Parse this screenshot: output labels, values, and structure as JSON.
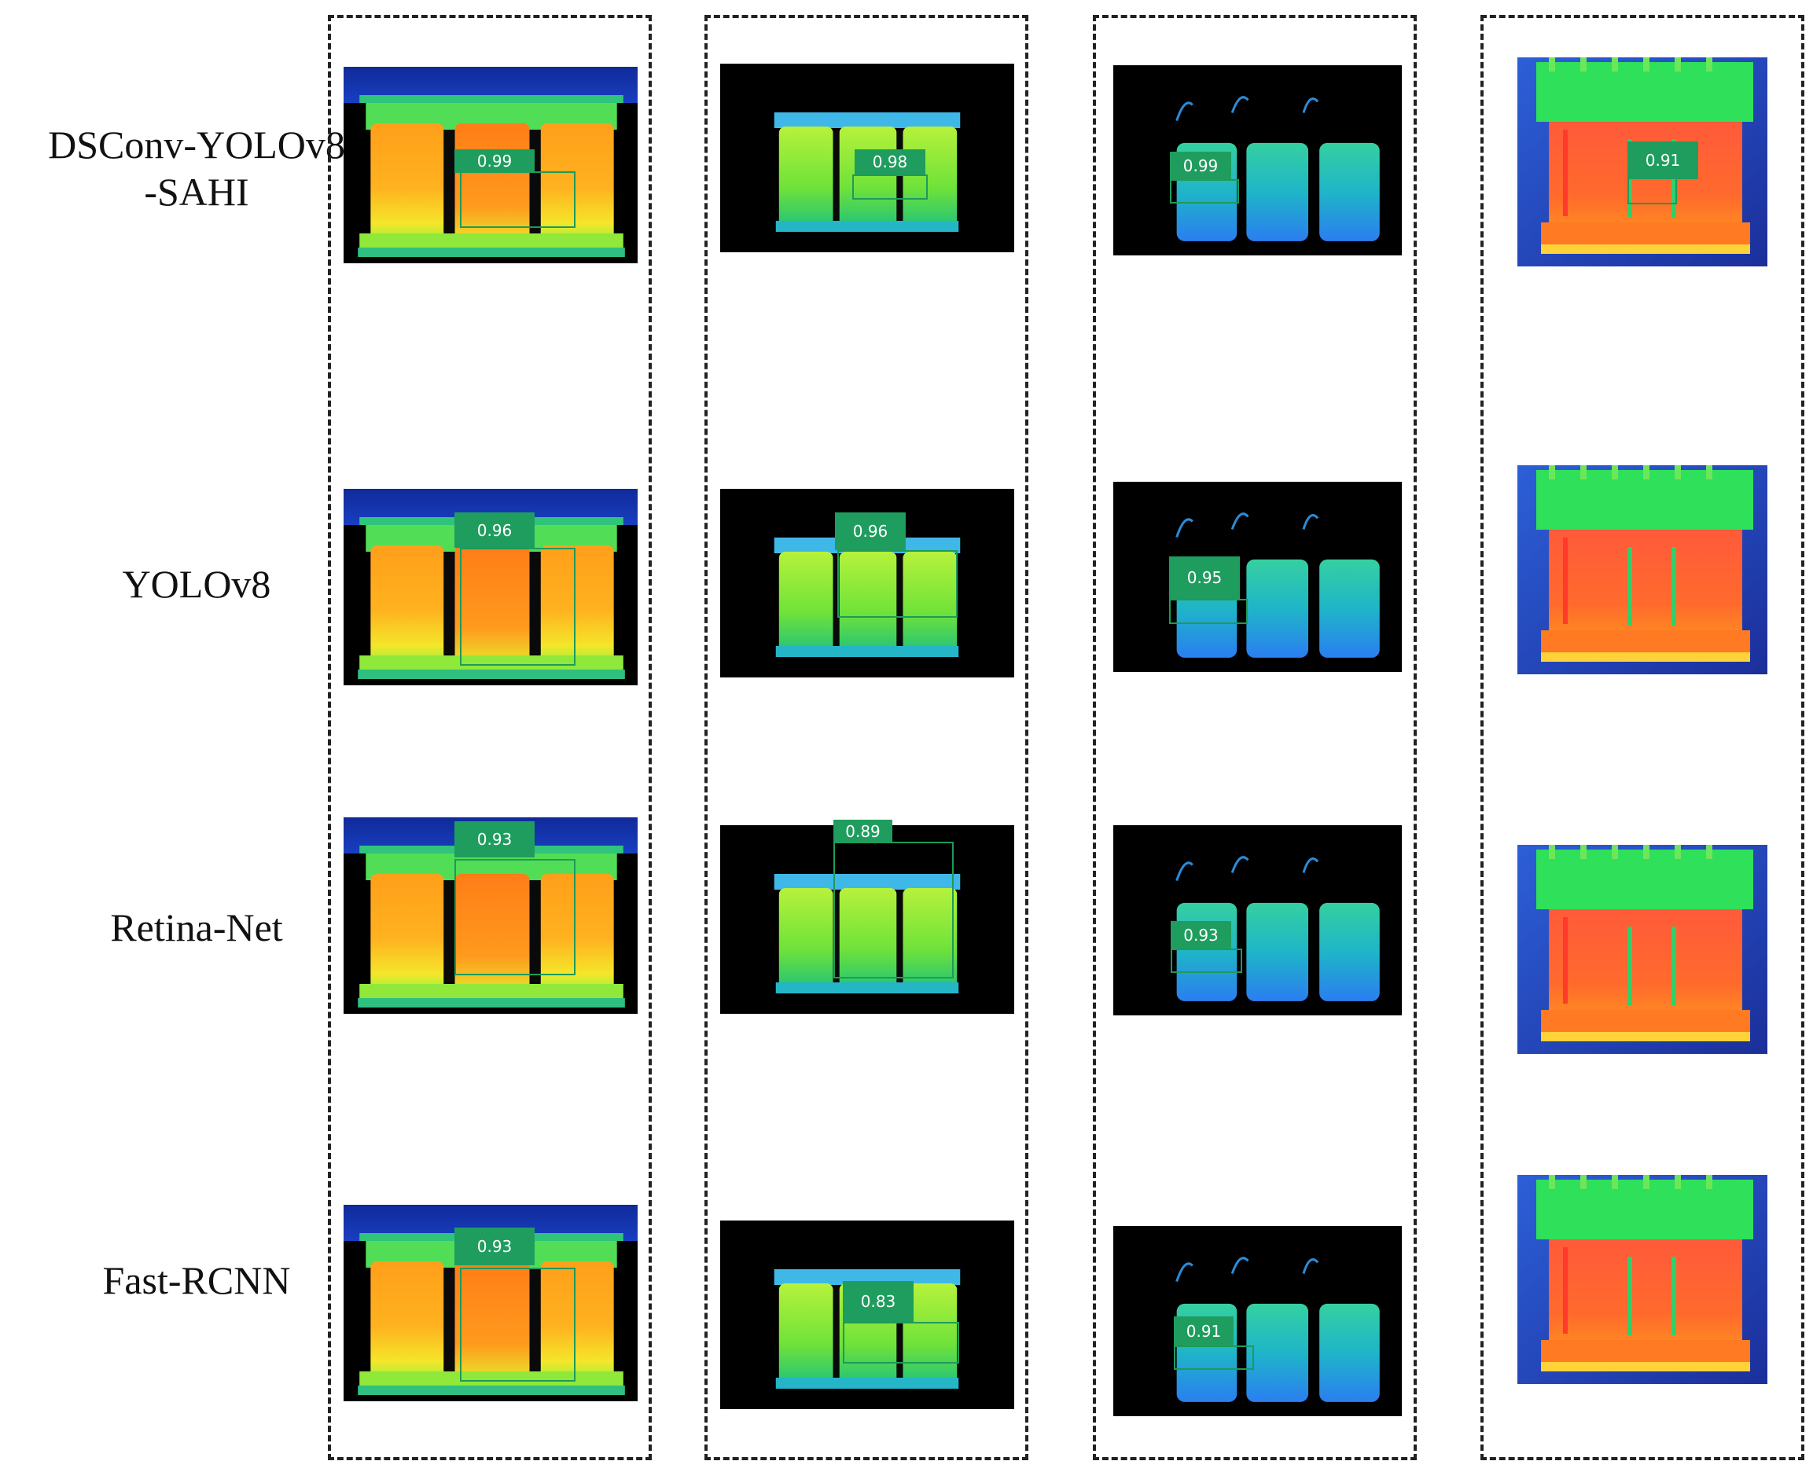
{
  "row_labels": {
    "r0_line1": "DSConv-YOLOv8",
    "r0_line2": "-SAHI",
    "r1": "YOLOv8",
    "r2": "Retina-Net",
    "r3": "Fast-RCNN"
  },
  "scores": {
    "c0r0": "0.99",
    "c0r1": "0.96",
    "c0r2": "0.93",
    "c0r3": "0.93",
    "c1r0": "0.98",
    "c1r1": "0.96",
    "c1r2": "0.89",
    "c1r3": "0.83",
    "c2r0": "0.99",
    "c2r1": "0.95",
    "c2r2": "0.93",
    "c2r3": "0.91",
    "c3r0": "0.91"
  },
  "colors": {
    "detection_green": "#1f9d5e",
    "frame_dash": "#222222",
    "thermal_hot": "#ff8a1c",
    "thermal_warm": "#ffe600",
    "thermal_mid": "#5fe33a",
    "thermal_cool": "#2fa3f0",
    "thermal_background": "#000000"
  }
}
